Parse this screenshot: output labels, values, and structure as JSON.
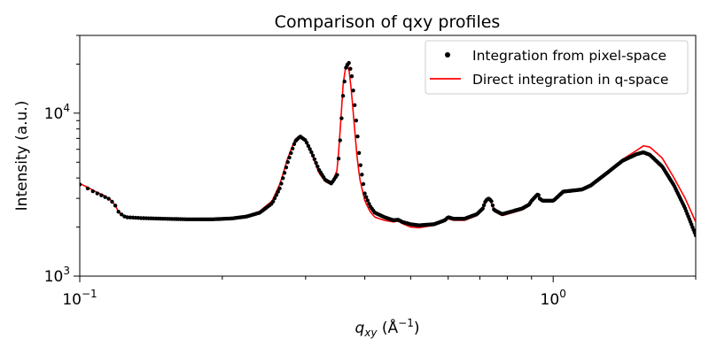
{
  "chart_data": {
    "type": "scatter",
    "title": "Comparison of qxy profiles",
    "xlabel": "q_xy (Å^-1)",
    "xlabel_main": "q",
    "xlabel_sub": "xy",
    "xlabel_unit_open": " (Å",
    "xlabel_unit_sup": "−1",
    "xlabel_unit_close": ")",
    "ylabel": "Intensity (a.u.)",
    "x_scale": "log",
    "y_scale": "log",
    "xlim": [
      0.1,
      2.0
    ],
    "ylim": [
      1000,
      30000
    ],
    "grid": false,
    "legend_position": "top-right",
    "x_tick_labels": [
      {
        "value": 0.1,
        "base": "10",
        "exp": "−1"
      },
      {
        "value": 1.0,
        "base": "10",
        "exp": "0"
      }
    ],
    "y_tick_labels": [
      {
        "value": 1000,
        "base": "10",
        "exp": "3"
      },
      {
        "value": 10000,
        "base": "10",
        "exp": "4"
      }
    ],
    "series": [
      {
        "name": "Integration from pixel-space",
        "style": "points",
        "color": "#000000",
        "points": [
          [
            0.1,
            3650
          ],
          [
            0.104,
            3450
          ],
          [
            0.108,
            3250
          ],
          [
            0.112,
            3100
          ],
          [
            0.116,
            2950
          ],
          [
            0.119,
            2700
          ],
          [
            0.121,
            2450
          ],
          [
            0.125,
            2300
          ],
          [
            0.135,
            2270
          ],
          [
            0.15,
            2250
          ],
          [
            0.17,
            2230
          ],
          [
            0.19,
            2230
          ],
          [
            0.21,
            2260
          ],
          [
            0.225,
            2320
          ],
          [
            0.24,
            2450
          ],
          [
            0.255,
            2800
          ],
          [
            0.265,
            3500
          ],
          [
            0.275,
            5000
          ],
          [
            0.285,
            6700
          ],
          [
            0.292,
            7200
          ],
          [
            0.3,
            6800
          ],
          [
            0.31,
            5600
          ],
          [
            0.32,
            4500
          ],
          [
            0.33,
            3900
          ],
          [
            0.34,
            3700
          ],
          [
            0.35,
            4200
          ],
          [
            0.355,
            7000
          ],
          [
            0.36,
            13000
          ],
          [
            0.365,
            19000
          ],
          [
            0.37,
            20500
          ],
          [
            0.375,
            17500
          ],
          [
            0.38,
            12000
          ],
          [
            0.385,
            8000
          ],
          [
            0.39,
            5200
          ],
          [
            0.4,
            3200
          ],
          [
            0.41,
            2700
          ],
          [
            0.42,
            2450
          ],
          [
            0.44,
            2300
          ],
          [
            0.46,
            2200
          ],
          [
            0.47,
            2220
          ],
          [
            0.48,
            2150
          ],
          [
            0.5,
            2080
          ],
          [
            0.52,
            2050
          ],
          [
            0.56,
            2080
          ],
          [
            0.59,
            2200
          ],
          [
            0.6,
            2300
          ],
          [
            0.615,
            2250
          ],
          [
            0.65,
            2250
          ],
          [
            0.69,
            2400
          ],
          [
            0.71,
            2600
          ],
          [
            0.72,
            2900
          ],
          [
            0.73,
            3000
          ],
          [
            0.74,
            2900
          ],
          [
            0.75,
            2550
          ],
          [
            0.78,
            2400
          ],
          [
            0.82,
            2500
          ],
          [
            0.86,
            2600
          ],
          [
            0.89,
            2750
          ],
          [
            0.9,
            2900
          ],
          [
            0.92,
            3100
          ],
          [
            0.93,
            3200
          ],
          [
            0.935,
            3000
          ],
          [
            0.95,
            2900
          ],
          [
            1.0,
            2900
          ],
          [
            1.02,
            3050
          ],
          [
            1.05,
            3300
          ],
          [
            1.1,
            3350
          ],
          [
            1.15,
            3400
          ],
          [
            1.2,
            3600
          ],
          [
            1.3,
            4300
          ],
          [
            1.4,
            5100
          ],
          [
            1.5,
            5600
          ],
          [
            1.55,
            5750
          ],
          [
            1.6,
            5550
          ],
          [
            1.7,
            4700
          ],
          [
            1.8,
            3600
          ],
          [
            1.9,
            2600
          ],
          [
            2.0,
            1780
          ]
        ]
      },
      {
        "name": "Direct integration in q-space",
        "style": "line",
        "color": "#ff0000",
        "points": [
          [
            0.1,
            3700
          ],
          [
            0.104,
            3500
          ],
          [
            0.108,
            3300
          ],
          [
            0.112,
            3150
          ],
          [
            0.116,
            2950
          ],
          [
            0.119,
            2700
          ],
          [
            0.121,
            2450
          ],
          [
            0.125,
            2300
          ],
          [
            0.135,
            2270
          ],
          [
            0.15,
            2250
          ],
          [
            0.17,
            2230
          ],
          [
            0.19,
            2230
          ],
          [
            0.21,
            2260
          ],
          [
            0.225,
            2330
          ],
          [
            0.24,
            2500
          ],
          [
            0.255,
            2900
          ],
          [
            0.265,
            3700
          ],
          [
            0.275,
            5300
          ],
          [
            0.285,
            6900
          ],
          [
            0.292,
            7300
          ],
          [
            0.3,
            6800
          ],
          [
            0.31,
            5500
          ],
          [
            0.32,
            4300
          ],
          [
            0.33,
            3800
          ],
          [
            0.34,
            3650
          ],
          [
            0.35,
            4500
          ],
          [
            0.355,
            8000
          ],
          [
            0.36,
            15000
          ],
          [
            0.365,
            20000
          ],
          [
            0.37,
            19000
          ],
          [
            0.375,
            13500
          ],
          [
            0.38,
            8500
          ],
          [
            0.385,
            5500
          ],
          [
            0.39,
            4000
          ],
          [
            0.4,
            2900
          ],
          [
            0.41,
            2500
          ],
          [
            0.42,
            2300
          ],
          [
            0.44,
            2200
          ],
          [
            0.46,
            2150
          ],
          [
            0.47,
            2180
          ],
          [
            0.48,
            2100
          ],
          [
            0.5,
            2000
          ],
          [
            0.52,
            1980
          ],
          [
            0.56,
            2050
          ],
          [
            0.59,
            2200
          ],
          [
            0.6,
            2250
          ],
          [
            0.615,
            2200
          ],
          [
            0.65,
            2200
          ],
          [
            0.69,
            2350
          ],
          [
            0.71,
            2550
          ],
          [
            0.72,
            2850
          ],
          [
            0.73,
            2950
          ],
          [
            0.74,
            2850
          ],
          [
            0.75,
            2500
          ],
          [
            0.78,
            2350
          ],
          [
            0.82,
            2450
          ],
          [
            0.86,
            2550
          ],
          [
            0.89,
            2700
          ],
          [
            0.9,
            2850
          ],
          [
            0.92,
            3050
          ],
          [
            0.93,
            3150
          ],
          [
            0.935,
            2950
          ],
          [
            0.95,
            2850
          ],
          [
            1.0,
            2850
          ],
          [
            1.02,
            3000
          ],
          [
            1.05,
            3250
          ],
          [
            1.1,
            3300
          ],
          [
            1.15,
            3400
          ],
          [
            1.2,
            3600
          ],
          [
            1.3,
            4300
          ],
          [
            1.4,
            5200
          ],
          [
            1.5,
            5900
          ],
          [
            1.55,
            6300
          ],
          [
            1.6,
            6200
          ],
          [
            1.7,
            5300
          ],
          [
            1.8,
            4000
          ],
          [
            1.9,
            3000
          ],
          [
            2.0,
            2150
          ]
        ]
      }
    ]
  }
}
